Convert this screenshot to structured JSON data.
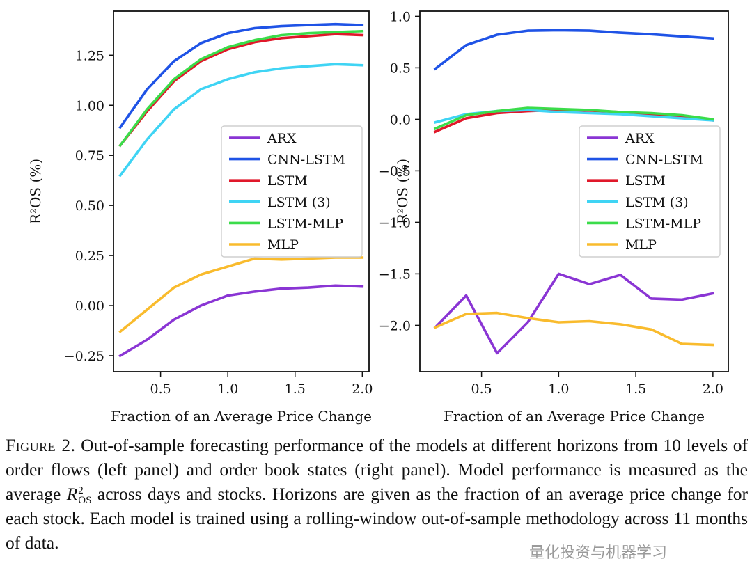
{
  "chart_data": [
    {
      "type": "line",
      "panel": "left",
      "xlabel": "Fraction of an Average Price Change",
      "ylabel": "R²OS (%)",
      "xlim": [
        0.15,
        2.05
      ],
      "ylim": [
        -0.33,
        1.47
      ],
      "xticks": [
        0.5,
        1.0,
        1.5,
        2.0
      ],
      "xtick_labels": [
        "0.5",
        "1.0",
        "1.5",
        "2.0"
      ],
      "yticks": [
        -0.25,
        0.0,
        0.25,
        0.5,
        0.75,
        1.0,
        1.25
      ],
      "ytick_labels": [
        "−0.25",
        "0.00",
        "0.25",
        "0.50",
        "0.75",
        "1.00",
        "1.25"
      ],
      "legend_position": "center-right",
      "x": [
        0.2,
        0.4,
        0.6,
        0.8,
        1.0,
        1.2,
        1.4,
        1.6,
        1.8,
        2.0
      ],
      "series": [
        {
          "name": "ARX",
          "color": "#8a35d4",
          "values": [
            -0.25,
            -0.17,
            -0.07,
            0.0,
            0.05,
            0.07,
            0.085,
            0.09,
            0.1,
            0.095
          ]
        },
        {
          "name": "CNN-LSTM",
          "color": "#1f53e6",
          "values": [
            0.89,
            1.08,
            1.22,
            1.31,
            1.36,
            1.385,
            1.395,
            1.4,
            1.405,
            1.4
          ]
        },
        {
          "name": "LSTM",
          "color": "#e0182a",
          "values": [
            0.8,
            0.97,
            1.12,
            1.22,
            1.28,
            1.315,
            1.335,
            1.345,
            1.355,
            1.35
          ]
        },
        {
          "name": "LSTM (3)",
          "color": "#3fd4f4",
          "values": [
            0.65,
            0.83,
            0.98,
            1.08,
            1.13,
            1.165,
            1.185,
            1.195,
            1.205,
            1.2
          ]
        },
        {
          "name": "LSTM-MLP",
          "color": "#3bdc4a",
          "values": [
            0.8,
            0.98,
            1.13,
            1.23,
            1.29,
            1.325,
            1.35,
            1.36,
            1.365,
            1.37
          ]
        },
        {
          "name": "MLP",
          "color": "#f9bb2d",
          "values": [
            -0.13,
            -0.02,
            0.09,
            0.155,
            0.195,
            0.235,
            0.23,
            0.235,
            0.24,
            0.24
          ]
        }
      ]
    },
    {
      "type": "line",
      "panel": "right",
      "xlabel": "Fraction of an Average Price Change",
      "ylabel": "R²OS (%)",
      "xlim": [
        0.1,
        2.1
      ],
      "ylim": [
        -2.45,
        1.05
      ],
      "xticks": [
        0.5,
        1.0,
        1.5,
        2.0
      ],
      "xtick_labels": [
        "0.5",
        "1.0",
        "1.5",
        "2.0"
      ],
      "yticks": [
        -2.0,
        -1.5,
        -1.0,
        -0.5,
        0.0,
        0.5,
        1.0
      ],
      "ytick_labels": [
        "−2.0",
        "−1.5",
        "−1.0",
        "−0.5",
        "0.0",
        "0.5",
        "1.0"
      ],
      "legend_position": "center-right",
      "x": [
        0.2,
        0.4,
        0.6,
        0.8,
        1.0,
        1.2,
        1.4,
        1.6,
        1.8,
        2.0
      ],
      "series": [
        {
          "name": "ARX",
          "color": "#8a35d4",
          "values": [
            -2.02,
            -1.71,
            -2.27,
            -1.97,
            -1.5,
            -1.6,
            -1.51,
            -1.74,
            -1.75,
            -1.69
          ]
        },
        {
          "name": "CNN-LSTM",
          "color": "#1f53e6",
          "values": [
            0.49,
            0.72,
            0.82,
            0.86,
            0.865,
            0.86,
            0.84,
            0.825,
            0.805,
            0.785
          ]
        },
        {
          "name": "LSTM",
          "color": "#e0182a",
          "values": [
            -0.12,
            0.01,
            0.06,
            0.08,
            0.09,
            0.085,
            0.07,
            0.05,
            0.03,
            -0.01
          ]
        },
        {
          "name": "LSTM (3)",
          "color": "#3fd4f4",
          "values": [
            -0.03,
            0.05,
            0.08,
            0.09,
            0.07,
            0.06,
            0.05,
            0.03,
            0.01,
            -0.01
          ]
        },
        {
          "name": "LSTM-MLP",
          "color": "#3bdc4a",
          "values": [
            -0.09,
            0.04,
            0.08,
            0.11,
            0.1,
            0.09,
            0.07,
            0.06,
            0.04,
            0.0
          ]
        },
        {
          "name": "MLP",
          "color": "#f9bb2d",
          "values": [
            -2.02,
            -1.89,
            -1.88,
            -1.93,
            -1.97,
            -1.96,
            -1.99,
            -2.04,
            -2.18,
            -2.19
          ]
        }
      ]
    }
  ],
  "caption": {
    "label": "Figure 2.",
    "part1": "Out-of-sample forecasting performance of the models at different horizons from 10 levels of order flows (left panel) and order book states (right panel). Model performance is measured as the average",
    "math_symbol": "R",
    "math_sup": "2",
    "math_sub": "OS",
    "part2": "across days and stocks. Horizons are given as the fraction of an average price change for each stock. Each model is trained using a rolling-window out-of-sample methodology across 11 months of data."
  },
  "watermark": "量化投资与机器学习"
}
